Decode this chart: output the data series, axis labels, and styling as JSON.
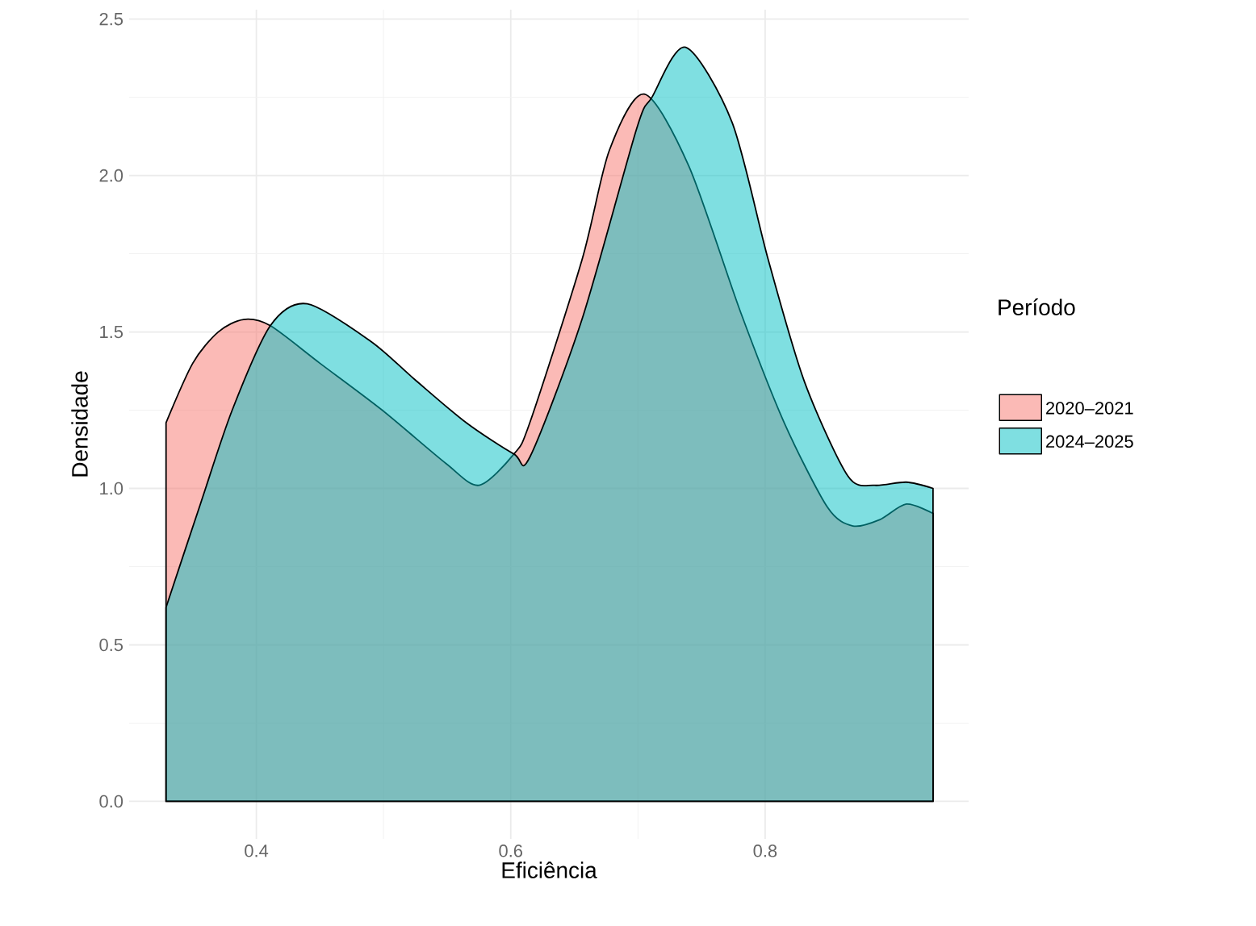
{
  "chart_data": {
    "type": "area",
    "xlabel": "Eficiência",
    "ylabel": "Densidade",
    "legend_title": "Período",
    "legend": "right",
    "grid": true,
    "xlim": [
      0.3,
      0.96
    ],
    "ylim": [
      -0.12,
      2.53
    ],
    "xticks": [
      0.4,
      0.6,
      0.8
    ],
    "yticks": [
      {
        "value": 0,
        "label": "0.0"
      },
      0.5,
      {
        "value": 1,
        "label": "1.0"
      },
      1.5,
      {
        "value": 2,
        "label": "2.0"
      },
      2.5
    ],
    "series": [
      {
        "name": "2020–2021",
        "color": "#F8766D",
        "x": [
          0.329,
          0.35,
          0.37,
          0.39,
          0.411,
          0.45,
          0.499,
          0.549,
          0.575,
          0.6025,
          0.615,
          0.656,
          0.6775,
          0.705,
          0.74,
          0.781,
          0.815,
          0.849,
          0.869,
          0.89,
          0.911,
          0.932
        ],
        "values": [
          1.21,
          1.4,
          1.5,
          1.54,
          1.52,
          1.4,
          1.25,
          1.08,
          1.01,
          1.11,
          1.21,
          1.73,
          2.08,
          2.26,
          2.03,
          1.56,
          1.21,
          0.94,
          0.88,
          0.9,
          0.95,
          0.92
        ]
      },
      {
        "name": "2024–2025",
        "color": "#00BFC4",
        "x": [
          0.329,
          0.356,
          0.381,
          0.411,
          0.44,
          0.49,
          0.524,
          0.565,
          0.6025,
          0.615,
          0.656,
          0.699,
          0.711,
          0.7375,
          0.774,
          0.8025,
          0.831,
          0.865,
          0.886,
          0.911,
          0.932
        ],
        "values": [
          0.62,
          0.95,
          1.25,
          1.52,
          1.59,
          1.47,
          1.35,
          1.21,
          1.11,
          1.1,
          1.54,
          2.15,
          2.25,
          2.41,
          2.17,
          1.73,
          1.34,
          1.04,
          1.01,
          1.02,
          1.0
        ]
      }
    ]
  }
}
